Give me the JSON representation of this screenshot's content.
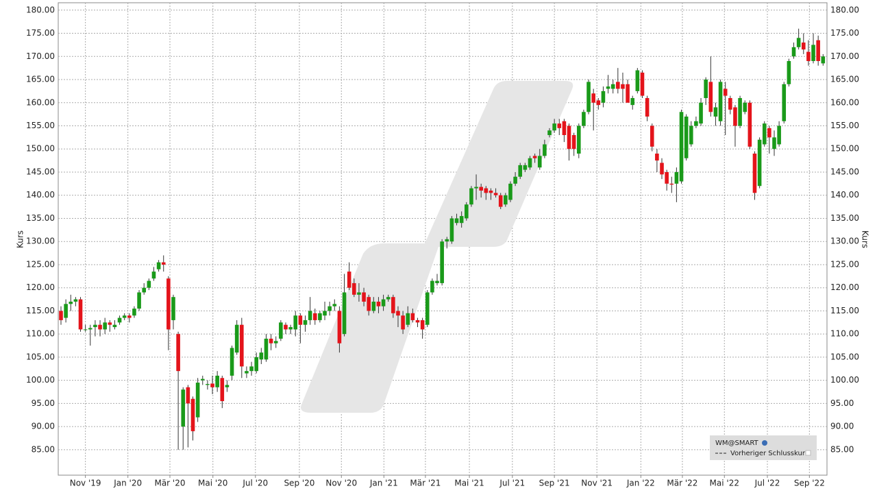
{
  "chart_data": {
    "type": "candlestick",
    "y_label": "Kurs",
    "series": {
      "name": "WM@SMART",
      "up_color": "#1a9a1a",
      "down_color": "#e4141b",
      "open": [
        115,
        113.5,
        116.5,
        117,
        117.5,
        111,
        111,
        111.5,
        112,
        111,
        112.5,
        111.5,
        112.5,
        113.5,
        114,
        114,
        115.5,
        119,
        120,
        122,
        124,
        125.5,
        122,
        113,
        110,
        90,
        98.5,
        96,
        92,
        100,
        99,
        99.3,
        98.5,
        100.5,
        98.5,
        101,
        106,
        112,
        101.5,
        102,
        102,
        104.5,
        104.5,
        109,
        108,
        109,
        112,
        111,
        111,
        114,
        112,
        113,
        114.5,
        113,
        114,
        115,
        116,
        115,
        110,
        123.5,
        121,
        118.5,
        119,
        118,
        115,
        117,
        116,
        117.5,
        118,
        115,
        114,
        112,
        114.5,
        113,
        113,
        112,
        119,
        121,
        121,
        130,
        130,
        134,
        134,
        135,
        138,
        141.5,
        141.8,
        141.5,
        141,
        140.5,
        140,
        138,
        139,
        142.5,
        144,
        145.5,
        146,
        148.5,
        146,
        148.5,
        153,
        154,
        155.5,
        156,
        155,
        153,
        149,
        155,
        158,
        162,
        160.5,
        160,
        163,
        163,
        164.5,
        164,
        164,
        159.5,
        162.5,
        166.5,
        161,
        155,
        149,
        147,
        145,
        142.5,
        142.5,
        143,
        148,
        151,
        155,
        155.5,
        161,
        164.5,
        157,
        156,
        163,
        161,
        159,
        155,
        158,
        160,
        149,
        142,
        151,
        154.5,
        150,
        151,
        156,
        164,
        170,
        172,
        173,
        171,
        169,
        173.5,
        168.5
      ],
      "high": [
        116,
        117.5,
        118.5,
        118,
        118,
        112,
        112,
        113,
        113,
        113.5,
        113,
        113,
        114,
        114.5,
        114.5,
        116,
        119.5,
        121,
        122,
        124.5,
        126,
        127,
        122.5,
        118.5,
        110.5,
        98.5,
        99,
        96.5,
        100.5,
        101,
        100,
        101,
        102,
        101,
        100,
        107.5,
        113,
        113.5,
        103,
        104,
        106,
        107,
        110,
        110,
        109.5,
        113,
        112.5,
        112,
        115,
        114.5,
        114,
        118,
        115.5,
        115,
        117,
        117,
        117.5,
        116,
        123,
        125.5,
        122,
        121,
        120,
        118.5,
        118,
        118,
        118.5,
        118.5,
        118.5,
        116,
        115,
        116,
        115.5,
        113.5,
        113.5,
        119.5,
        122,
        123,
        130.5,
        131,
        135.5,
        136,
        136.5,
        138.5,
        142,
        144.5,
        142.5,
        142,
        141.5,
        141.5,
        140.5,
        140.5,
        143,
        145,
        147,
        147,
        148.5,
        149,
        150,
        152,
        154.5,
        156.5,
        156.5,
        156.5,
        155.5,
        153.5,
        155.5,
        158.5,
        165,
        163,
        161,
        163.5,
        166,
        165,
        167.5,
        166.5,
        165,
        161.5,
        167.5,
        167,
        161.5,
        155.5,
        150,
        148,
        145.5,
        144,
        146,
        158.5,
        157.5,
        156,
        157,
        161,
        165.5,
        170,
        160,
        165,
        164.5,
        161.5,
        159.5,
        161.5,
        160.5,
        160.5,
        149.5,
        152.5,
        156,
        155,
        154,
        156,
        164.5,
        169.5,
        173,
        176,
        175,
        173.5,
        175,
        174.5,
        170.5
      ],
      "low": [
        112,
        112.5,
        115,
        116,
        110.5,
        110.5,
        107.5,
        109.5,
        109.5,
        110,
        110.5,
        111,
        112,
        113,
        112.5,
        113.5,
        115,
        118.5,
        119.5,
        121.5,
        123.5,
        123.5,
        106.5,
        111,
        85,
        85,
        85.5,
        87,
        91,
        99,
        98,
        97,
        97.5,
        94,
        97.5,
        100,
        105.5,
        100.5,
        100.5,
        101,
        101.5,
        103.5,
        104,
        106.5,
        107,
        108.5,
        110,
        110,
        109.5,
        108,
        110.5,
        112,
        112,
        112.5,
        113,
        114,
        115,
        106,
        109.5,
        119.5,
        118,
        117,
        116,
        114,
        114.5,
        114.5,
        115,
        117,
        113.5,
        111.5,
        110,
        111.5,
        112.5,
        111.5,
        109,
        111.5,
        118.5,
        120.5,
        120.5,
        128.5,
        129.5,
        133.5,
        133,
        134.5,
        137.5,
        139,
        139.5,
        139,
        139,
        139.5,
        137,
        137.5,
        138.5,
        142,
        143.5,
        145,
        145.5,
        147,
        145.5,
        148,
        152.5,
        153.5,
        153,
        151.5,
        147.5,
        148.5,
        148,
        154.5,
        157.5,
        154,
        158.5,
        159,
        162,
        162,
        162,
        160,
        160,
        158.5,
        162,
        161,
        156,
        149.5,
        145,
        143.5,
        141,
        140.5,
        138.5,
        142.5,
        147.5,
        150.5,
        154.5,
        155,
        159.5,
        157,
        155,
        155,
        153,
        157.5,
        150.5,
        154.5,
        157.5,
        150,
        139,
        141.5,
        150.5,
        149,
        148.5,
        150.5,
        155.5,
        163.5,
        169.5,
        171.5,
        170.5,
        168,
        168.5,
        168,
        168
      ],
      "close": [
        113,
        116.5,
        117,
        117.5,
        111,
        111,
        111.3,
        112,
        111,
        112.5,
        112,
        112,
        113.5,
        114,
        113.5,
        115.5,
        119,
        120,
        121.5,
        123.5,
        125.5,
        125,
        111,
        118,
        102,
        98,
        95,
        89,
        99.5,
        100.3,
        99.2,
        98.5,
        101,
        95.5,
        99,
        107,
        112,
        103,
        102,
        103,
        105,
        106,
        109,
        108,
        108.5,
        112.5,
        111,
        111.5,
        114,
        112,
        113,
        115,
        113,
        114.5,
        115,
        116,
        116.5,
        108,
        119,
        120,
        118.5,
        119,
        117,
        115,
        117,
        116,
        117.5,
        118,
        114.5,
        114,
        111,
        114.5,
        113,
        112.5,
        111,
        119,
        121.5,
        121.5,
        130,
        130.5,
        135,
        135,
        135.5,
        138,
        141.5,
        141.8,
        141,
        140.5,
        140.5,
        140,
        137.5,
        140,
        142.5,
        144,
        146.5,
        146.5,
        148,
        148,
        148.5,
        151,
        154,
        155.5,
        154.5,
        153,
        150,
        150,
        155,
        158,
        164.5,
        160,
        159.5,
        162.5,
        163.5,
        164,
        163,
        163,
        160,
        161,
        167,
        161.5,
        157,
        150.5,
        147.5,
        144.5,
        142.5,
        142.3,
        145,
        158,
        157,
        155,
        156,
        160,
        165,
        158,
        159,
        164.5,
        161.5,
        158.5,
        155,
        161,
        160,
        150.5,
        140.5,
        152,
        155.5,
        152.5,
        152.5,
        155,
        164,
        169,
        172,
        174,
        171.5,
        169,
        172.5,
        169,
        170
      ]
    },
    "reference_line": {
      "name": "Vorheriger Schlusskurs"
    },
    "legend": "lower right",
    "grid": true,
    "xlim": [
      -0.56,
      156.8
    ],
    "xticks": [
      {
        "value": 5,
        "label": "Nov '19"
      },
      {
        "value": 13.7,
        "label": "Jan '20"
      },
      {
        "value": 22.3,
        "label": "Mär '20"
      },
      {
        "value": 31.1,
        "label": "Mai '20"
      },
      {
        "value": 39.8,
        "label": "Jul '20"
      },
      {
        "value": 48.8,
        "label": "Sep '20"
      },
      {
        "value": 57.4,
        "label": "Nov '20"
      },
      {
        "value": 66.1,
        "label": "Jan '21"
      },
      {
        "value": 74.6,
        "label": "Mär '21"
      },
      {
        "value": 83.6,
        "label": "Mai '21"
      },
      {
        "value": 92.4,
        "label": "Jul '21"
      },
      {
        "value": 101,
        "label": "Sep '21"
      },
      {
        "value": 109.7,
        "label": "Nov '21"
      },
      {
        "value": 118.7,
        "label": "Jan '22"
      },
      {
        "value": 127.2,
        "label": "Mär '22"
      },
      {
        "value": 135.8,
        "label": "Mai '22"
      },
      {
        "value": 144.6,
        "label": "Jul '22"
      },
      {
        "value": 153.2,
        "label": "Sep '22"
      }
    ],
    "ylim": [
      79.5,
      181.6
    ],
    "yticks": [
      {
        "value": 85,
        "label": "85.00"
      },
      {
        "value": 90,
        "label": "90.00"
      },
      {
        "value": 95,
        "label": "95.00"
      },
      {
        "value": 100,
        "label": "100.00"
      },
      {
        "value": 105,
        "label": "105.00"
      },
      {
        "value": 110,
        "label": "110.00"
      },
      {
        "value": 115,
        "label": "115.00"
      },
      {
        "value": 120,
        "label": "120.00"
      },
      {
        "value": 125,
        "label": "125.00"
      },
      {
        "value": 130,
        "label": "130.00"
      },
      {
        "value": 135,
        "label": "135.00"
      },
      {
        "value": 140,
        "label": "140.00"
      },
      {
        "value": 145,
        "label": "145.00"
      },
      {
        "value": 150,
        "label": "150.00"
      },
      {
        "value": 155,
        "label": "155.00"
      },
      {
        "value": 160,
        "label": "160.00"
      },
      {
        "value": 165,
        "label": "165.00"
      },
      {
        "value": 170,
        "label": "170.00"
      },
      {
        "value": 175,
        "label": "175.00"
      },
      {
        "value": 180,
        "label": "180.00"
      }
    ]
  }
}
